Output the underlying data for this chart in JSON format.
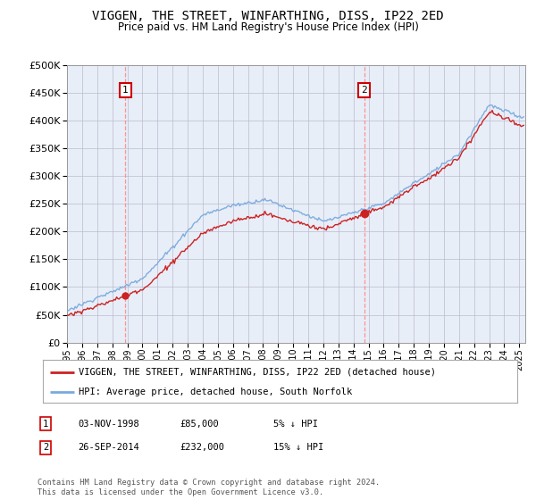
{
  "title": "VIGGEN, THE STREET, WINFARTHING, DISS, IP22 2ED",
  "subtitle": "Price paid vs. HM Land Registry's House Price Index (HPI)",
  "legend_line1": "VIGGEN, THE STREET, WINFARTHING, DISS, IP22 2ED (detached house)",
  "legend_line2": "HPI: Average price, detached house, South Norfolk",
  "annotation1": {
    "label": "1",
    "date_str": "03-NOV-1998",
    "price_str": "£85,000",
    "note": "5% ↓ HPI"
  },
  "annotation2": {
    "label": "2",
    "date_str": "26-SEP-2014",
    "price_str": "£232,000",
    "note": "15% ↓ HPI"
  },
  "footer": "Contains HM Land Registry data © Crown copyright and database right 2024.\nThis data is licensed under the Open Government Licence v3.0.",
  "hpi_color": "#7aaadd",
  "price_color": "#cc2222",
  "annotation_color": "#cc0000",
  "vline_color": "#ff8888",
  "plot_bg": "#e8eef8",
  "ylim": [
    0,
    500000
  ],
  "yticks": [
    0,
    50000,
    100000,
    150000,
    200000,
    250000,
    300000,
    350000,
    400000,
    450000,
    500000
  ],
  "year_start": 1995,
  "year_end": 2025,
  "sale1_year": 1998,
  "sale1_month": 11,
  "sale1_price": 85000,
  "sale2_year": 2014,
  "sale2_month": 9,
  "sale2_price": 232000
}
